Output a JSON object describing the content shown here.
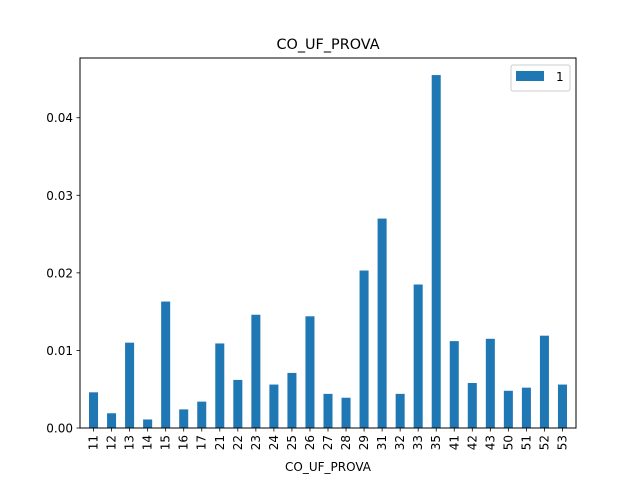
{
  "chart_data": {
    "type": "bar",
    "title": "CO_UF_PROVA",
    "xlabel": "CO_UF_PROVA",
    "ylabel": "",
    "categories": [
      "11",
      "12",
      "13",
      "14",
      "15",
      "16",
      "17",
      "21",
      "22",
      "23",
      "24",
      "25",
      "26",
      "27",
      "28",
      "29",
      "31",
      "32",
      "33",
      "35",
      "41",
      "42",
      "43",
      "50",
      "51",
      "52",
      "53"
    ],
    "series": [
      {
        "name": "1",
        "color": "#1f77b4",
        "values": [
          0.0046,
          0.0019,
          0.011,
          0.0011,
          0.0163,
          0.0024,
          0.0034,
          0.0109,
          0.0062,
          0.0146,
          0.0056,
          0.0071,
          0.0144,
          0.0044,
          0.0039,
          0.0203,
          0.027,
          0.0044,
          0.0185,
          0.0455,
          0.0112,
          0.0058,
          0.0115,
          0.0048,
          0.0052,
          0.0119,
          0.0056
        ]
      }
    ],
    "ylim": [
      0,
      0.0477
    ],
    "yticks": [
      0.0,
      0.01,
      0.02,
      0.03,
      0.04
    ],
    "ytick_labels": [
      "0.00",
      "0.01",
      "0.02",
      "0.03",
      "0.04"
    ],
    "grid": false,
    "legend_position": "top-right",
    "x_tick_rotation": "vertical"
  }
}
